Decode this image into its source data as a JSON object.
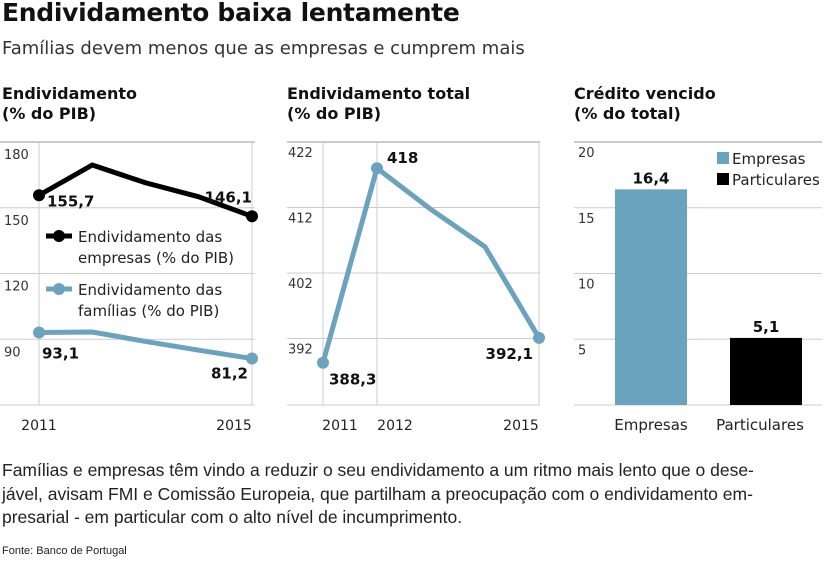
{
  "header": {
    "title": "Endividamento baixa lentamente",
    "subtitle": "Famílias devem menos que as empresas e cumprem mais"
  },
  "colors": {
    "blue": "#6aa3bd",
    "black": "#000000",
    "grid": "#cccccc"
  },
  "chart_data": [
    {
      "type": "line",
      "title_line1": "Endividamento",
      "title_line2": "(% do PIB)",
      "x": [
        2011,
        2012,
        2013,
        2014,
        2015
      ],
      "x_tick_labels": [
        "2011",
        "2015"
      ],
      "ylim": [
        60,
        180
      ],
      "y_ticks": [
        180,
        150,
        120,
        90
      ],
      "y_tick_labels": [
        "180",
        "150",
        "120",
        "90"
      ],
      "grid": true,
      "series": [
        {
          "name": "Endividamento das empresas (% do PIB)",
          "legend_line1": "Endividamento das",
          "legend_line2": "empresas (% do PIB)",
          "color": "#000000",
          "values": [
            155.7,
            169.5,
            161.4,
            155.0,
            146.1
          ],
          "labels": [
            "155,7",
            "146,1"
          ]
        },
        {
          "name": "Endividamento das famílias (% do PIB)",
          "legend_line1": "Endividamento das",
          "legend_line2": "famílias (% do PIB)",
          "color": "#6aa3bd",
          "values": [
            93.1,
            93.3,
            89.0,
            85.0,
            81.2
          ],
          "labels": [
            "93,1",
            "81,2"
          ]
        }
      ],
      "legend": "center"
    },
    {
      "type": "line",
      "title_line1": "Endividamento total",
      "title_line2": "(% do PIB)",
      "x": [
        2011,
        2012,
        2013,
        2014,
        2015
      ],
      "x_tick_labels": [
        "2011",
        "2012",
        "2015"
      ],
      "ylim": [
        382,
        422
      ],
      "y_ticks": [
        422,
        412,
        402,
        392
      ],
      "y_tick_labels": [
        "422",
        "412",
        "402",
        "392"
      ],
      "grid": true,
      "series": [
        {
          "name": "Endividamento total",
          "color": "#6aa3bd",
          "values": [
            388.3,
            418.0,
            411.7,
            406.0,
            392.1
          ],
          "labels": [
            "388,3",
            "418",
            "392,1"
          ]
        }
      ]
    },
    {
      "type": "bar",
      "title_line1": "Crédito vencido",
      "title_line2": "(% do total)",
      "categories": [
        "Empresas",
        "Particulares"
      ],
      "values": [
        16.4,
        5.1
      ],
      "value_labels": [
        "16,4",
        "5,1"
      ],
      "colors": [
        "#6aa3bd",
        "#000000"
      ],
      "ylim": [
        0,
        20
      ],
      "y_ticks": [
        20,
        15,
        10,
        5
      ],
      "y_tick_labels": [
        "20",
        "15",
        "10",
        "5"
      ],
      "grid": true,
      "legend_entries": [
        "Empresas",
        "Particulares"
      ],
      "legend": "top-right"
    }
  ],
  "body": {
    "line1": "Famílias e empresas têm vindo a reduzir o seu endividamento a um ritmo mais lento que o dese-",
    "line2": "jável, avisam FMI e Comissão Europeia, que partilham a preocupação com o endividamento em-",
    "line3": "presarial - em particular com o alto nível de incumprimento."
  },
  "source": "Fonte: Banco de Portugal"
}
